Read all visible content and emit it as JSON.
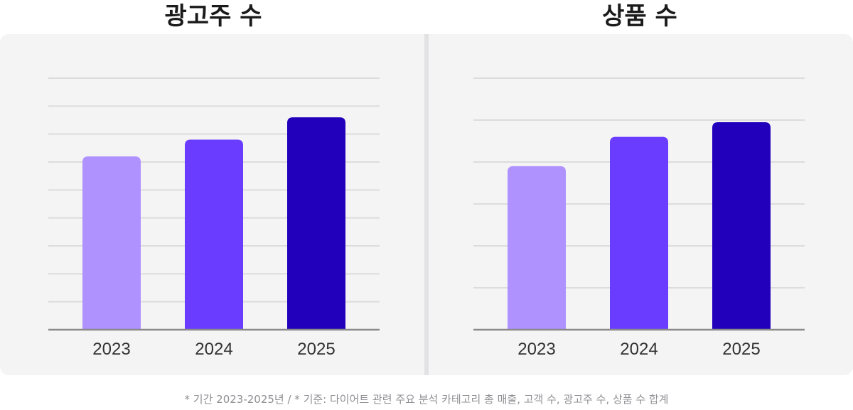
{
  "footnote": "* 기간 2023-2025년 / * 기준: 다이어트 관련 주요 분석 카테고리 총 매출, 고객 수, 광고주 수, 상품 수 합계",
  "colors": {
    "year_2023": "#b092ff",
    "year_2024": "#6a3cff",
    "year_2025": "#2200bb",
    "grid": "#dcdcdc",
    "axis": "#8a8a8a",
    "panel_bg": "#f4f4f5"
  },
  "chart_data": [
    {
      "type": "bar",
      "title": "광고주 수",
      "categories": [
        "2023",
        "2024",
        "2025"
      ],
      "values": [
        62,
        68,
        76
      ],
      "ylim": [
        0,
        90
      ],
      "grid": true,
      "gridlines": 9,
      "colors": [
        "#b092ff",
        "#6a3cff",
        "#2200bb"
      ]
    },
    {
      "type": "bar",
      "title": "상품 수",
      "categories": [
        "2023",
        "2024",
        "2025"
      ],
      "values": [
        39,
        46,
        49.5
      ],
      "ylim": [
        0,
        60
      ],
      "grid": true,
      "gridlines": 6,
      "colors": [
        "#b092ff",
        "#6a3cff",
        "#2200bb"
      ]
    }
  ]
}
